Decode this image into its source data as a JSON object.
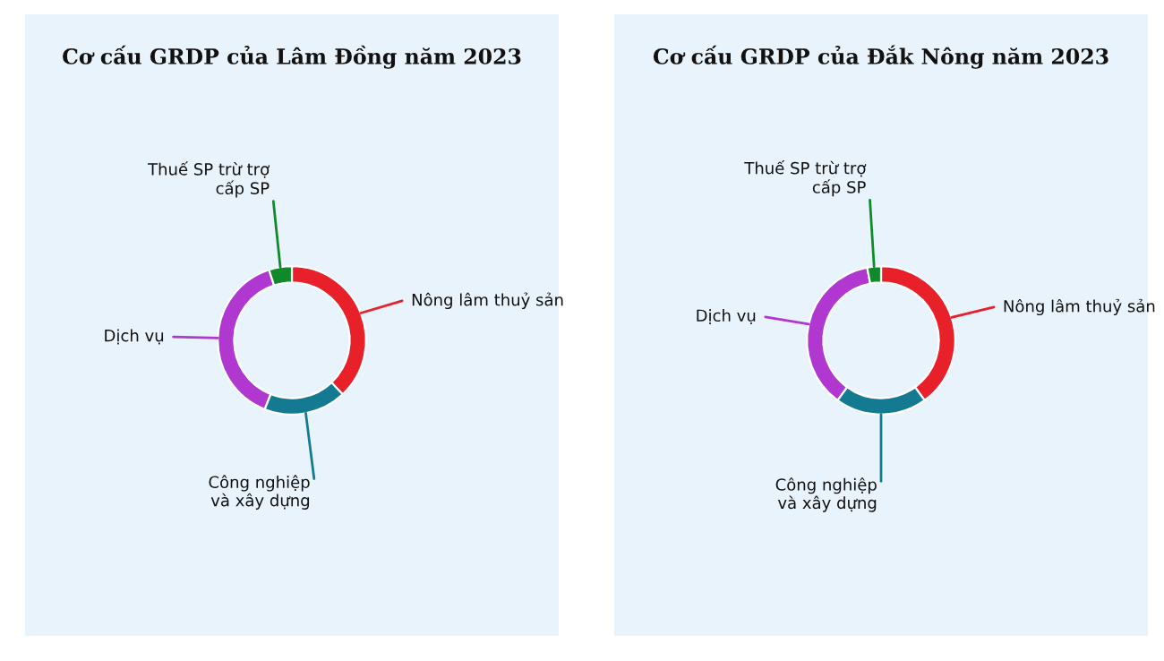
{
  "chart_data": [
    {
      "type": "donut",
      "title": "Cơ cấu GRDP của Lâm Đồng năm 2023",
      "categories": [
        "Nông lâm thuỷ sản",
        "Công nghiệp\nvà xây dựng",
        "Dịch vụ",
        "Thuế SP trừ trợ\ncấp SP"
      ],
      "values": [
        38,
        18,
        39,
        5
      ],
      "colors": [
        "#e8202a",
        "#137a91",
        "#b038d0",
        "#0e8a2a"
      ]
    },
    {
      "type": "donut",
      "title": "Cơ cấu GRDP của Đắk Nông năm 2023",
      "categories": [
        "Nông lâm thuỷ sản",
        "Công nghiệp\nvà xây dựng",
        "Dịch vụ",
        "Thuế SP trừ trợ\ncấp SP"
      ],
      "values": [
        40,
        20,
        37,
        3
      ],
      "colors": [
        "#e8202a",
        "#137a91",
        "#b038d0",
        "#0e8a2a"
      ]
    }
  ]
}
